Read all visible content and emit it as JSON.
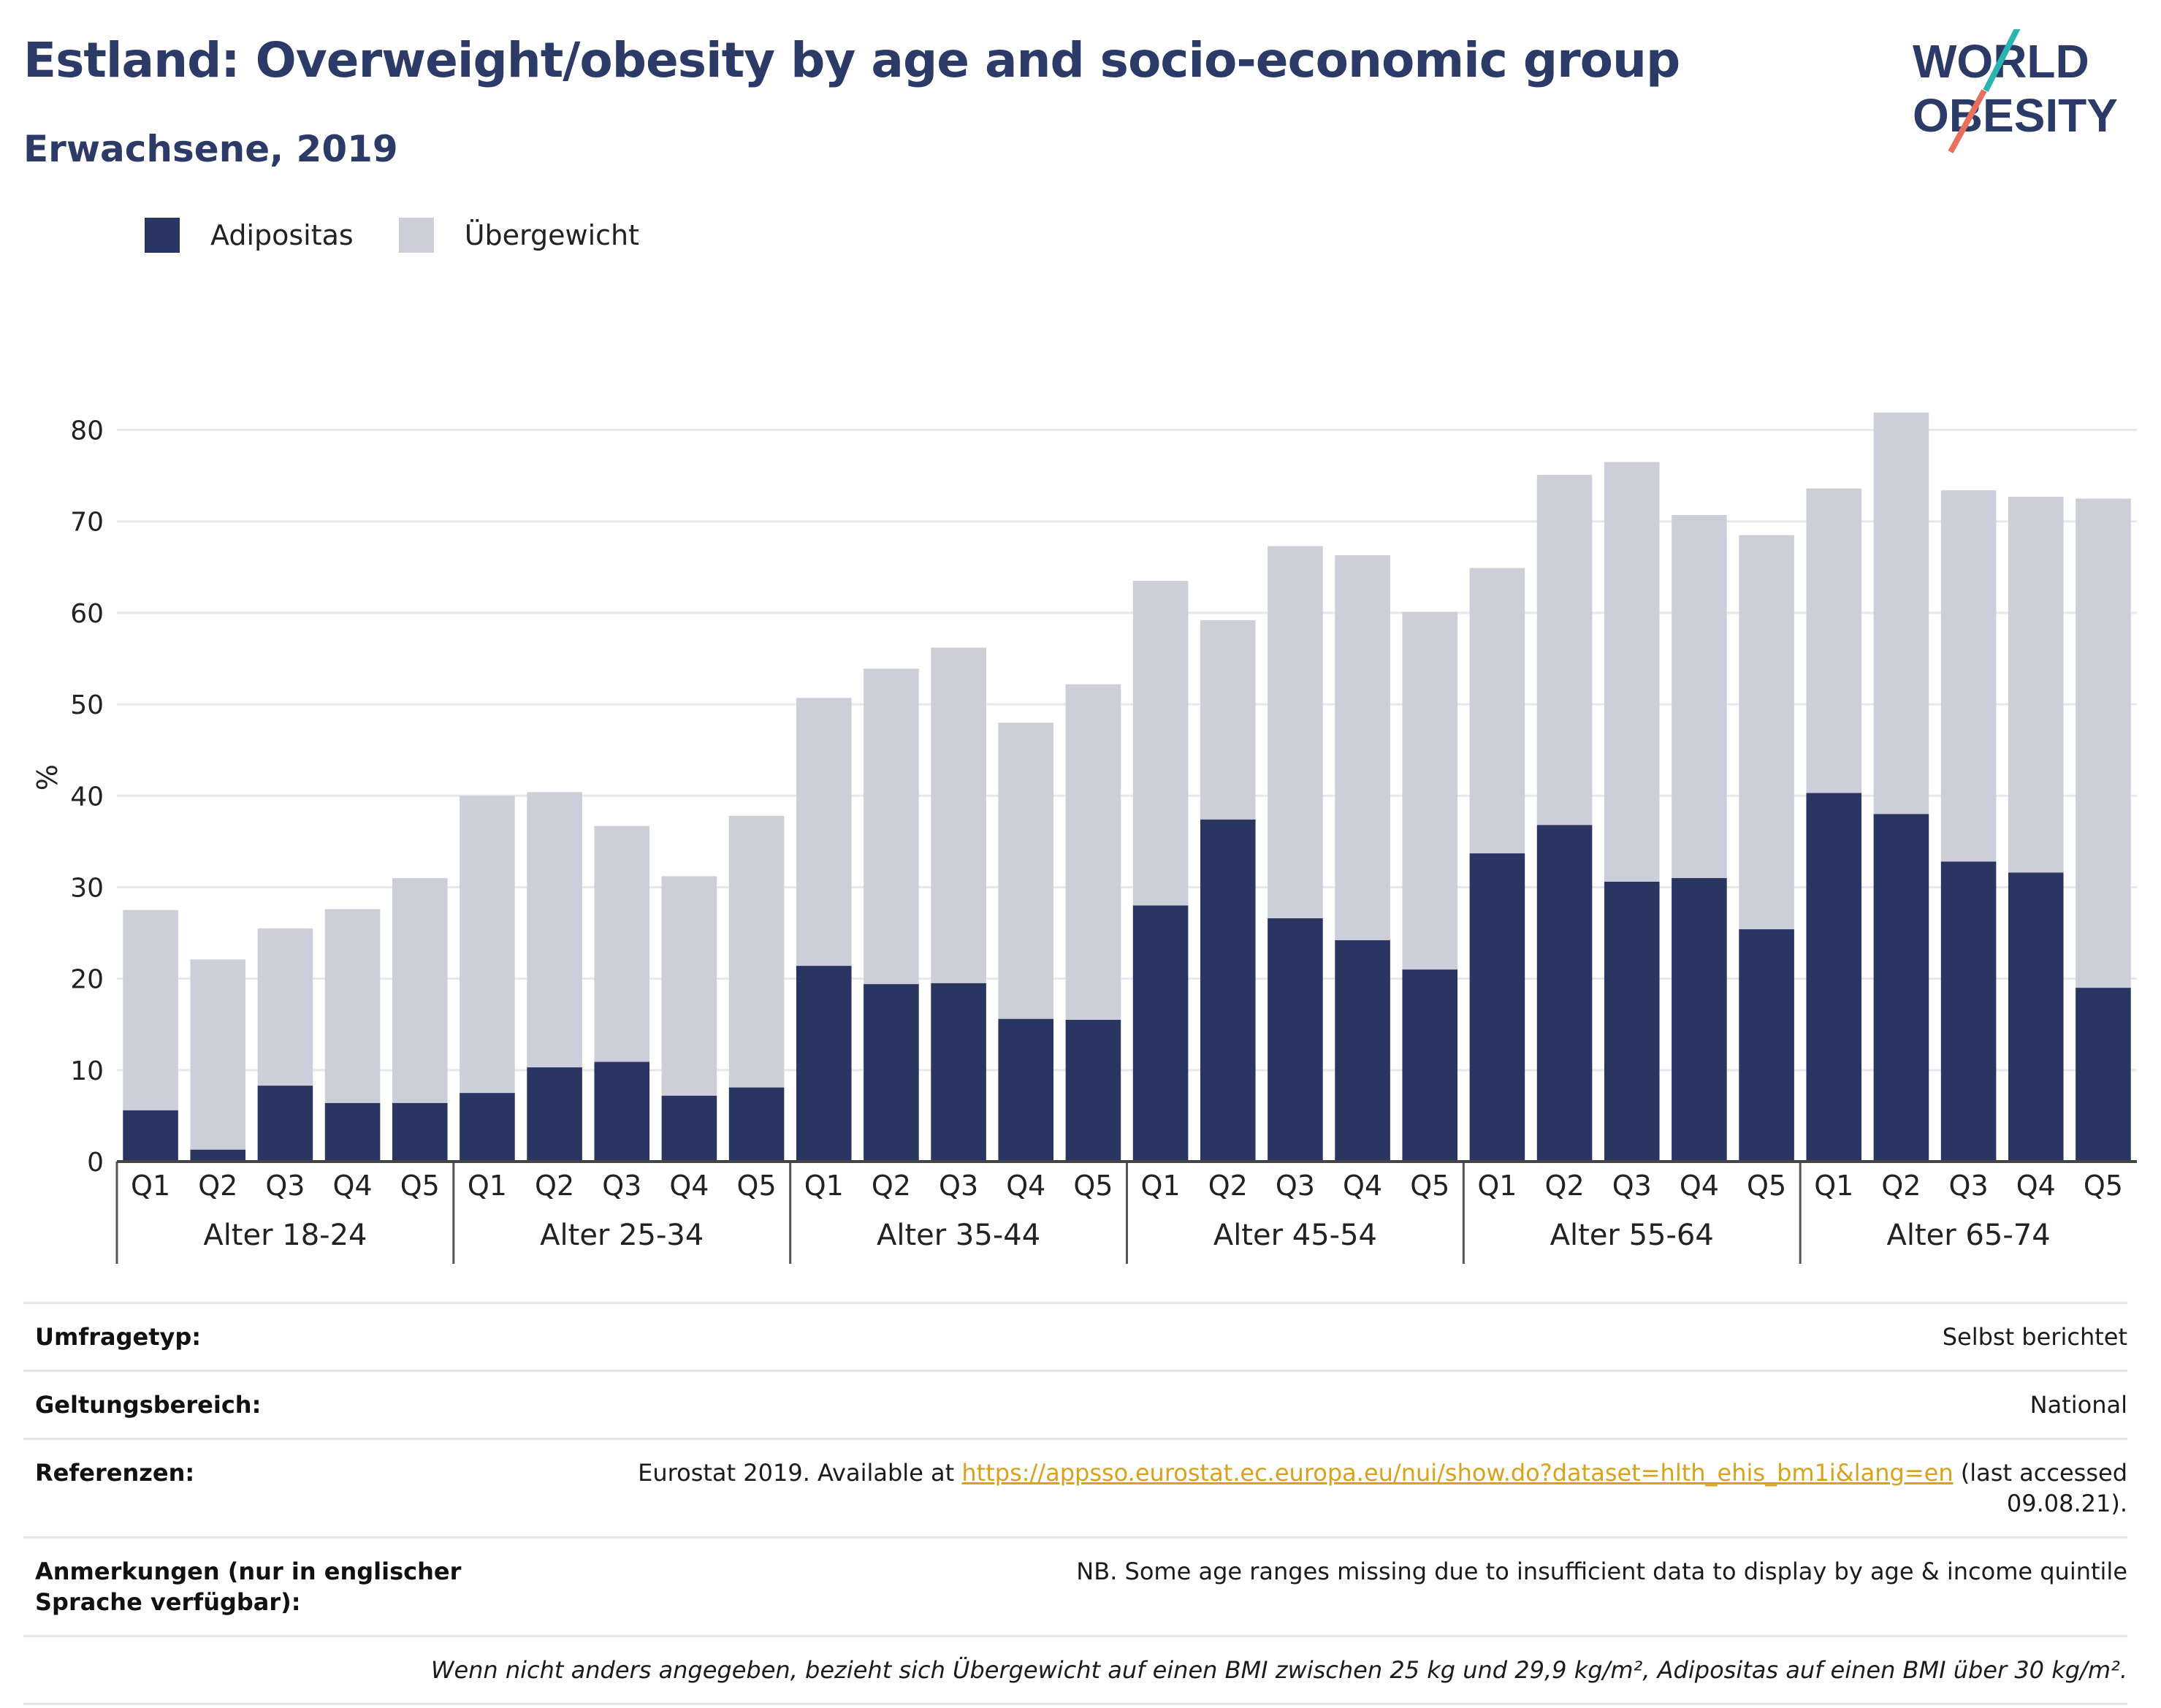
{
  "header": {
    "title": "Estland: Overweight/obesity by age and socio-economic group",
    "subtitle": "Erwachsene, 2019"
  },
  "logo": {
    "line1": "WORLD",
    "line2": "OBESITY"
  },
  "colors": {
    "obesity": "#2b3562",
    "overweight": "#ccced9",
    "accent_teal": "#2bb5b0",
    "accent_coral": "#e8705f",
    "brand": "#2b3a67",
    "link": "#d9a21a"
  },
  "legend": {
    "obesity_label": "Adipositas",
    "overweight_label": "Übergewicht"
  },
  "chart_data": {
    "type": "bar",
    "stacked": true,
    "ylabel": "%",
    "ylim": [
      0,
      85
    ],
    "yticks": [
      0,
      10,
      20,
      30,
      40,
      50,
      60,
      70,
      80
    ],
    "grid": true,
    "legend_position": "top-left",
    "quintiles": [
      "Q1",
      "Q2",
      "Q3",
      "Q4",
      "Q5"
    ],
    "groups": [
      {
        "label": "Alter 18-24",
        "obesity": [
          5.6,
          1.3,
          8.3,
          6.4,
          6.4
        ],
        "total": [
          27.5,
          22.1,
          25.5,
          27.6,
          31.0
        ]
      },
      {
        "label": "Alter 25-34",
        "obesity": [
          7.5,
          10.3,
          10.9,
          7.2,
          8.1
        ],
        "total": [
          40.0,
          40.4,
          36.7,
          31.2,
          37.8
        ]
      },
      {
        "label": "Alter 35-44",
        "obesity": [
          21.4,
          19.4,
          19.5,
          15.6,
          15.5
        ],
        "total": [
          50.7,
          53.9,
          56.2,
          48.0,
          52.2
        ]
      },
      {
        "label": "Alter 45-54",
        "obesity": [
          28.0,
          37.4,
          26.6,
          24.2,
          21.0
        ],
        "total": [
          63.5,
          59.2,
          67.3,
          66.3,
          60.1
        ]
      },
      {
        "label": "Alter 55-64",
        "obesity": [
          33.7,
          36.8,
          30.6,
          31.0,
          25.4
        ],
        "total": [
          64.9,
          75.1,
          76.5,
          70.7,
          68.5
        ]
      },
      {
        "label": "Alter 65-74",
        "obesity": [
          40.3,
          38.0,
          32.8,
          31.6,
          19.0
        ],
        "total": [
          73.6,
          81.9,
          73.4,
          72.7,
          72.5
        ]
      }
    ],
    "series": [
      {
        "name": "Adipositas"
      },
      {
        "name": "Übergewicht"
      }
    ]
  },
  "info": {
    "survey_type_label": "Umfragetyp:",
    "survey_type_value": "Selbst berichtet",
    "coverage_label": "Geltungsbereich:",
    "coverage_value": "National",
    "references_label": "Referenzen:",
    "references_prefix": "Eurostat 2019. Available at ",
    "references_link": "https://appsso.eurostat.ec.europa.eu/nui/show.do?dataset=hlth_ehis_bm1i&lang=en",
    "references_suffix": " (last accessed 09.08.21).",
    "notes_label": "Anmerkungen (nur in englischer Sprache verfügbar):",
    "notes_value": "NB. Some age ranges missing due to insufficient data to display by age & income quintile",
    "definition": "Wenn nicht anders angegeben, bezieht sich Übergewicht auf einen BMI zwischen 25 kg und 29,9 kg/m², Adipositas auf einen BMI über 30 kg/m²."
  }
}
